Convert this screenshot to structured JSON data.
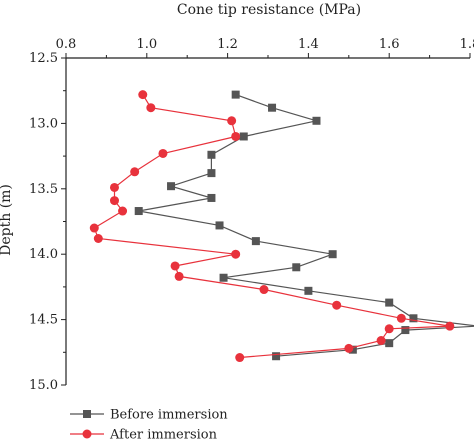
{
  "chart_data": {
    "type": "line",
    "xlabel": "Cone tip resistance (MPa)",
    "ylabel": "Depth (m)",
    "xlim": [
      0.8,
      1.8
    ],
    "ylim": [
      12.5,
      15.0
    ],
    "x_ticks": [
      "0.8",
      "1.0",
      "1.2",
      "1.4",
      "1.6",
      "1.8"
    ],
    "y_ticks": [
      "12.5",
      "13.0",
      "13.5",
      "14.0",
      "14.5",
      "15.0"
    ],
    "y_inverted": true,
    "x_axis_position": "top",
    "legend_position": "bottom-left",
    "series": [
      {
        "name": "Before immersion",
        "color": "#555555",
        "marker": "square",
        "points": [
          [
            1.22,
            12.78
          ],
          [
            1.31,
            12.88
          ],
          [
            1.42,
            12.98
          ],
          [
            1.24,
            13.1
          ],
          [
            1.16,
            13.24
          ],
          [
            1.16,
            13.38
          ],
          [
            1.06,
            13.48
          ],
          [
            1.16,
            13.57
          ],
          [
            0.98,
            13.67
          ],
          [
            1.18,
            13.78
          ],
          [
            1.27,
            13.9
          ],
          [
            1.46,
            14.0
          ],
          [
            1.37,
            14.1
          ],
          [
            1.19,
            14.18
          ],
          [
            1.4,
            14.28
          ],
          [
            1.6,
            14.37
          ],
          [
            1.66,
            14.49
          ],
          [
            1.82,
            14.55
          ],
          [
            1.64,
            14.58
          ],
          [
            1.6,
            14.68
          ],
          [
            1.51,
            14.73
          ],
          [
            1.32,
            14.78
          ]
        ]
      },
      {
        "name": "After immersion",
        "color": "#e8323c",
        "marker": "circle",
        "points": [
          [
            0.99,
            12.78
          ],
          [
            1.01,
            12.88
          ],
          [
            1.21,
            12.98
          ],
          [
            1.22,
            13.1
          ],
          [
            1.04,
            13.23
          ],
          [
            0.97,
            13.37
          ],
          [
            0.92,
            13.49
          ],
          [
            0.92,
            13.59
          ],
          [
            0.94,
            13.67
          ],
          [
            0.87,
            13.8
          ],
          [
            0.88,
            13.88
          ],
          [
            1.22,
            14.0
          ],
          [
            1.07,
            14.09
          ],
          [
            1.08,
            14.17
          ],
          [
            1.29,
            14.27
          ],
          [
            1.47,
            14.39
          ],
          [
            1.63,
            14.49
          ],
          [
            1.75,
            14.55
          ],
          [
            1.6,
            14.57
          ],
          [
            1.58,
            14.66
          ],
          [
            1.5,
            14.72
          ],
          [
            1.23,
            14.79
          ]
        ]
      }
    ]
  }
}
